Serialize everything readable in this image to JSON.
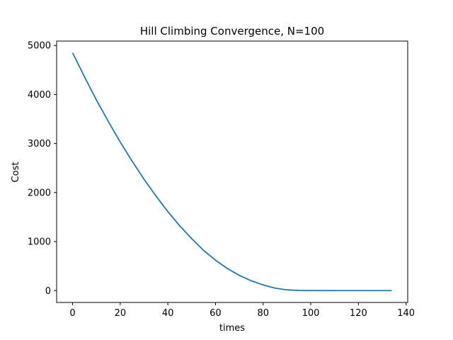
{
  "chart_data": {
    "type": "line",
    "title": "Hill Climbing Convergence, N=100",
    "xlabel": "times",
    "ylabel": "Cost",
    "xlim": [
      -6.7,
      140.7
    ],
    "ylim": [
      -242,
      5090
    ],
    "xticks": [
      0,
      20,
      40,
      60,
      80,
      100,
      120,
      140
    ],
    "yticks": [
      0,
      1000,
      2000,
      3000,
      4000,
      5000
    ],
    "grid": false,
    "legend": "none",
    "series": [
      {
        "color": "#1f77b4",
        "points": [
          [
            0,
            4850
          ],
          [
            5,
            4360
          ],
          [
            10,
            3890
          ],
          [
            15,
            3450
          ],
          [
            20,
            3030
          ],
          [
            25,
            2640
          ],
          [
            30,
            2270
          ],
          [
            35,
            1930
          ],
          [
            40,
            1610
          ],
          [
            45,
            1320
          ],
          [
            50,
            1060
          ],
          [
            55,
            820
          ],
          [
            60,
            620
          ],
          [
            65,
            450
          ],
          [
            70,
            310
          ],
          [
            75,
            200
          ],
          [
            80,
            115
          ],
          [
            85,
            50
          ],
          [
            90,
            15
          ],
          [
            95,
            3
          ],
          [
            100,
            1
          ],
          [
            110,
            0
          ],
          [
            120,
            0
          ],
          [
            134,
            0
          ]
        ]
      }
    ]
  }
}
